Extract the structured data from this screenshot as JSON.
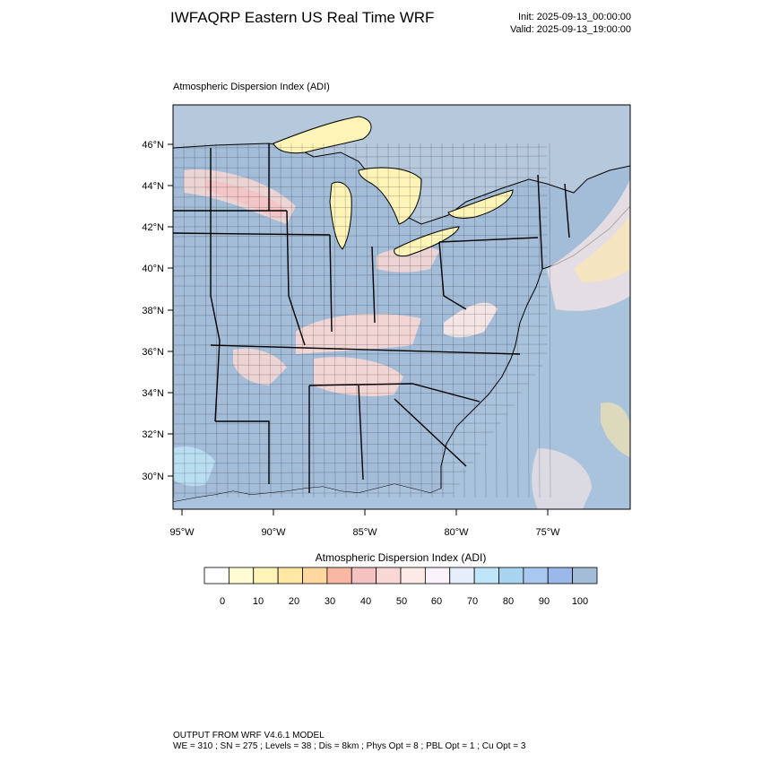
{
  "header": {
    "title": "IWFAQRP Eastern US Real Time WRF",
    "init": "Init: 2025-09-13_00:00:00",
    "valid": "Valid: 2025-09-13_19:00:00"
  },
  "map": {
    "subtitle": "Atmospheric Dispersion Index   (ADI)",
    "lat_labels": [
      "46°N",
      "44°N",
      "42°N",
      "40°N",
      "38°N",
      "36°N",
      "34°N",
      "32°N",
      "30°N"
    ],
    "lon_labels": [
      "95°W",
      "90°W",
      "85°W",
      "80°W",
      "75°W"
    ],
    "colors": {
      "background_sea": "#a9c3dd",
      "land_high_adi": "#a3bcd8",
      "frame": "#000000"
    }
  },
  "legend": {
    "title": "Atmospheric Dispersion Index  (ADI)",
    "tick_labels": [
      "0",
      "10",
      "20",
      "30",
      "40",
      "50",
      "60",
      "70",
      "80",
      "90",
      "100"
    ],
    "colors": [
      "#ffffff",
      "#fffcd4",
      "#fff4b8",
      "#ffe8a6",
      "#ffd8a0",
      "#f9b8a4",
      "#f5c2c2",
      "#f9d7d4",
      "#fde9e7",
      "#f8f4fa",
      "#e6eefc",
      "#bfe6f8",
      "#a8d4f0",
      "#a8c8f0",
      "#9ab8e8",
      "#a3bcd8"
    ]
  },
  "footer": {
    "line1": "OUTPUT FROM WRF V4.6.1 MODEL",
    "line2": "WE = 310 ; SN = 275 ; Levels = 38 ; Dis = 8km ; Phys Opt = 8 ; PBL Opt = 1 ; Cu Opt = 3"
  }
}
